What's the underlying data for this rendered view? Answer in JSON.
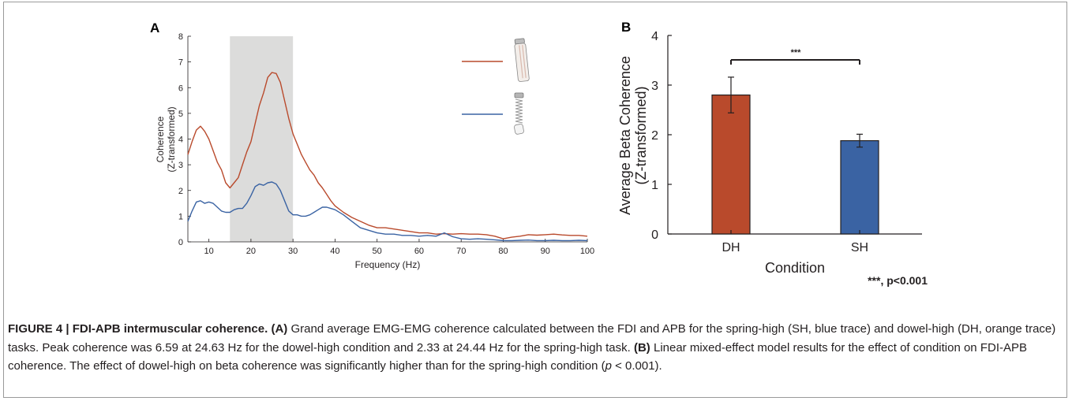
{
  "figure": {
    "caption": {
      "fig_label": "FIGURE 4 | FDI-APB intermuscular coherence.",
      "a_label": "(A)",
      "a_text": " Grand average EMG-EMG coherence calculated between the FDI and APB for the spring-high (SH, blue trace) and dowel-high (DH, orange trace) tasks. Peak coherence was 6.59 at 24.63 Hz for the dowel-high condition and 2.33 at 24.44 Hz for the spring-high task. ",
      "b_label": "(B)",
      "b_text": " Linear mixed-effect model results for the effect of condition on FDI-APB coherence. The effect of dowel-high on beta coherence was significantly higher than for the spring-high condition (",
      "p_symbol": "p",
      "p_tail": " < 0.001)."
    }
  },
  "colors": {
    "dh": "#b94a2c",
    "sh": "#3a63a3",
    "shade": "#dcdcdb",
    "axis": "#231f20"
  },
  "icons": {
    "dh_legend": "dowel-icon",
    "sh_legend": "spring-icon"
  },
  "chart_data": [
    {
      "panel": "A",
      "type": "line",
      "xlabel": "Frequency (Hz)",
      "ylabel_lines": [
        "Coherence",
        "(Z-transformed)"
      ],
      "xlim": [
        5,
        100
      ],
      "ylim": [
        0,
        8
      ],
      "xticks": [
        10,
        20,
        30,
        40,
        50,
        60,
        70,
        80,
        90,
        100
      ],
      "yticks": [
        0,
        1,
        2,
        3,
        4,
        5,
        6,
        7,
        8
      ],
      "shaded_band": [
        15,
        30
      ],
      "legend_position": "top-right",
      "series": [
        {
          "color": "#b94a2c",
          "x": [
            5,
            6,
            7,
            8,
            9,
            10,
            11,
            12,
            13,
            14,
            15,
            16,
            17,
            18,
            19,
            20,
            21,
            22,
            23,
            24,
            25,
            26,
            27,
            28,
            29,
            30,
            31,
            32,
            33,
            34,
            35,
            36,
            37,
            38,
            39,
            40,
            42,
            44,
            46,
            48,
            50,
            52,
            54,
            56,
            58,
            60,
            62,
            64,
            66,
            68,
            70,
            72,
            74,
            76,
            78,
            80,
            82,
            84,
            86,
            88,
            90,
            92,
            94,
            96,
            98,
            100
          ],
          "values": [
            3.4,
            3.9,
            4.35,
            4.5,
            4.3,
            4.0,
            3.55,
            3.1,
            2.8,
            2.3,
            2.1,
            2.3,
            2.5,
            3.0,
            3.5,
            3.9,
            4.6,
            5.3,
            5.8,
            6.4,
            6.59,
            6.55,
            6.2,
            5.5,
            4.8,
            4.2,
            3.8,
            3.4,
            3.1,
            2.8,
            2.6,
            2.3,
            2.1,
            1.85,
            1.6,
            1.4,
            1.15,
            0.95,
            0.8,
            0.65,
            0.55,
            0.55,
            0.5,
            0.45,
            0.4,
            0.35,
            0.35,
            0.3,
            0.32,
            0.3,
            0.32,
            0.3,
            0.3,
            0.28,
            0.22,
            0.12,
            0.18,
            0.22,
            0.28,
            0.26,
            0.28,
            0.3,
            0.27,
            0.25,
            0.25,
            0.22
          ]
        },
        {
          "color": "#3a63a3",
          "x": [
            5,
            6,
            7,
            8,
            9,
            10,
            11,
            12,
            13,
            14,
            15,
            16,
            17,
            18,
            19,
            20,
            21,
            22,
            23,
            24,
            25,
            26,
            27,
            28,
            29,
            30,
            31,
            32,
            33,
            34,
            35,
            36,
            37,
            38,
            39,
            40,
            42,
            44,
            46,
            48,
            50,
            52,
            54,
            56,
            58,
            60,
            62,
            64,
            66,
            68,
            70,
            72,
            74,
            76,
            78,
            80,
            82,
            84,
            86,
            88,
            90,
            92,
            94,
            96,
            98,
            100
          ],
          "values": [
            0.8,
            1.2,
            1.55,
            1.6,
            1.5,
            1.55,
            1.5,
            1.35,
            1.2,
            1.15,
            1.15,
            1.25,
            1.3,
            1.3,
            1.5,
            1.8,
            2.15,
            2.25,
            2.2,
            2.3,
            2.33,
            2.25,
            2.0,
            1.6,
            1.2,
            1.05,
            1.05,
            1.0,
            1.0,
            1.05,
            1.15,
            1.25,
            1.35,
            1.35,
            1.3,
            1.25,
            1.05,
            0.8,
            0.55,
            0.45,
            0.35,
            0.3,
            0.3,
            0.25,
            0.25,
            0.22,
            0.25,
            0.22,
            0.35,
            0.2,
            0.12,
            0.1,
            0.12,
            0.1,
            0.08,
            0.05,
            0.05,
            0.06,
            0.07,
            0.05,
            0.05,
            0.06,
            0.05,
            0.05,
            0.06,
            0.05
          ]
        }
      ]
    },
    {
      "panel": "B",
      "type": "bar",
      "categories": [
        "DH",
        "SH"
      ],
      "values": [
        2.8,
        1.88
      ],
      "errors": [
        0.36,
        0.13
      ],
      "colors": [
        "#b94a2c",
        "#3a63a3"
      ],
      "xlabel": "Condition",
      "ylabel_lines": [
        "Average Beta Coherence",
        "(Z-transformed)"
      ],
      "ylim": [
        0,
        4
      ],
      "yticks": [
        0,
        1,
        2,
        3,
        4
      ],
      "significance": {
        "marker": "***",
        "pairs": [
          "DH",
          "SH"
        ]
      },
      "footnote": "***, p<0.001"
    }
  ]
}
